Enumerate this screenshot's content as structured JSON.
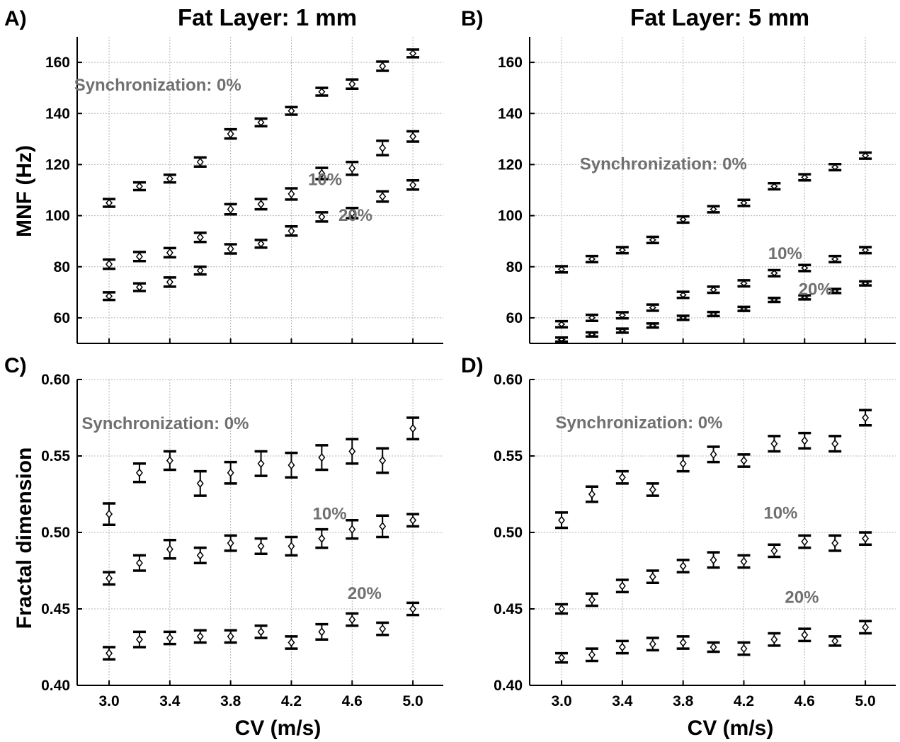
{
  "figure": {
    "x_label": "CV (m/s)",
    "y_label_top": "MNF (Hz)",
    "y_label_bottom": "Fractal dimension"
  },
  "chart_data": [
    {
      "id": "A",
      "type": "scatter",
      "letter": "A)",
      "title": "Fat Layer: 1 mm",
      "xlabel": "",
      "ylabel": "MNF (Hz)",
      "x": [
        3.0,
        3.2,
        3.4,
        3.6,
        3.8,
        4.0,
        4.2,
        4.4,
        4.6,
        4.8,
        5.0
      ],
      "xlim": [
        2.79,
        5.2
      ],
      "ylim": [
        50,
        170
      ],
      "xticks": [
        3.0,
        3.4,
        3.8,
        4.2,
        4.6,
        5.0
      ],
      "xticklabels": [],
      "yticks": [
        60,
        80,
        100,
        120,
        140,
        160
      ],
      "yticklabels": [
        "60",
        "80",
        "100",
        "120",
        "140",
        "160"
      ],
      "grid": true,
      "annotations": [
        {
          "text": "Synchronization:  0%",
          "x": 2.77,
          "y": 149
        },
        {
          "text": "10%",
          "x": 4.31,
          "y": 112
        },
        {
          "text": "20%",
          "x": 4.51,
          "y": 98
        }
      ],
      "series": [
        {
          "values": [
            105,
            111.5,
            114.5,
            121,
            132,
            136.5,
            141,
            148.5,
            151.5,
            158.5,
            163.5
          ],
          "errors": [
            1.5,
            1.5,
            1.5,
            1.8,
            1.8,
            1.5,
            1.5,
            1.5,
            1.8,
            1.8,
            1.5
          ]
        },
        {
          "values": [
            81,
            84,
            85.5,
            91.5,
            102.5,
            104.5,
            108.5,
            116.5,
            118.5,
            126.5,
            131
          ],
          "errors": [
            1.8,
            1.8,
            1.8,
            1.8,
            2.0,
            2.0,
            2.2,
            2.2,
            2.5,
            2.8,
            2.0
          ]
        },
        {
          "values": [
            68.5,
            72,
            74,
            78.5,
            87,
            89,
            94,
            99.5,
            101,
            107.5,
            112
          ],
          "errors": [
            1.5,
            1.5,
            1.8,
            1.5,
            1.8,
            1.5,
            1.8,
            1.8,
            2.0,
            2.0,
            1.8
          ]
        }
      ]
    },
    {
      "id": "B",
      "type": "scatter",
      "letter": "B)",
      "title": "Fat Layer: 5 mm",
      "xlabel": "",
      "ylabel": "",
      "x": [
        3.0,
        3.2,
        3.4,
        3.6,
        3.8,
        4.0,
        4.2,
        4.4,
        4.6,
        4.8,
        5.0
      ],
      "xlim": [
        2.79,
        5.2
      ],
      "ylim": [
        50,
        170
      ],
      "xticks": [
        3.0,
        3.4,
        3.8,
        4.2,
        4.6,
        5.0
      ],
      "xticklabels": [],
      "yticks": [
        60,
        80,
        100,
        120,
        140,
        160
      ],
      "yticklabels": [
        "60",
        "80",
        "100",
        "120",
        "140",
        "160"
      ],
      "grid": true,
      "annotations": [
        {
          "text": "Synchronization:  0%",
          "x": 3.12,
          "y": 118
        },
        {
          "text": "10%",
          "x": 4.36,
          "y": 83
        },
        {
          "text": "20%",
          "x": 4.56,
          "y": 69
        }
      ],
      "series": [
        {
          "values": [
            79,
            83,
            86.5,
            90.5,
            98.5,
            102.5,
            105,
            111.5,
            115,
            119,
            123.5
          ],
          "errors": [
            1.2,
            1.2,
            1.2,
            1.2,
            1.2,
            1.2,
            1.2,
            1.2,
            1.2,
            1.2,
            1.2
          ]
        },
        {
          "values": [
            57.5,
            60,
            61,
            64,
            69,
            71,
            73.5,
            77.5,
            79.5,
            83,
            86.5
          ],
          "errors": [
            1.2,
            1.2,
            1.2,
            1.2,
            1.2,
            1.2,
            1.2,
            1.2,
            1.2,
            1.2,
            1.2
          ]
        },
        {
          "values": [
            51.5,
            53.5,
            55,
            57,
            60,
            61.5,
            63.5,
            67,
            68,
            70.5,
            73.5
          ],
          "errors": [
            0.8,
            0.8,
            0.8,
            0.8,
            0.8,
            0.8,
            0.8,
            0.8,
            0.8,
            0.8,
            0.8
          ]
        }
      ]
    },
    {
      "id": "C",
      "type": "scatter",
      "letter": "C)",
      "title": "",
      "xlabel": "CV (m/s)",
      "ylabel": "Fractal dimension",
      "x": [
        3.0,
        3.2,
        3.4,
        3.6,
        3.8,
        4.0,
        4.2,
        4.4,
        4.6,
        4.8,
        5.0
      ],
      "xlim": [
        2.79,
        5.2
      ],
      "ylim": [
        0.4,
        0.6
      ],
      "xticks": [
        3.0,
        3.4,
        3.8,
        4.2,
        4.6,
        5.0
      ],
      "xticklabels": [
        "3.0",
        "3.4",
        "3.8",
        "4.2",
        "4.6",
        "5.0"
      ],
      "yticks": [
        0.4,
        0.45,
        0.5,
        0.55,
        0.6
      ],
      "yticklabels": [
        "0.40",
        "0.45",
        "0.50",
        "0.55",
        "0.60"
      ],
      "grid": true,
      "annotations": [
        {
          "text": "Synchronization:  0%",
          "x": 2.82,
          "y": 0.5675
        },
        {
          "text": "10%",
          "x": 4.34,
          "y": 0.5085
        },
        {
          "text": "20%",
          "x": 4.57,
          "y": 0.4565
        }
      ],
      "series": [
        {
          "values": [
            0.512,
            0.539,
            0.547,
            0.532,
            0.539,
            0.545,
            0.544,
            0.549,
            0.553,
            0.547,
            0.568
          ],
          "errors": [
            0.007,
            0.006,
            0.006,
            0.008,
            0.007,
            0.008,
            0.008,
            0.008,
            0.008,
            0.008,
            0.007
          ]
        },
        {
          "values": [
            0.47,
            0.48,
            0.489,
            0.485,
            0.493,
            0.491,
            0.491,
            0.496,
            0.502,
            0.504,
            0.508
          ],
          "errors": [
            0.004,
            0.005,
            0.006,
            0.005,
            0.005,
            0.005,
            0.006,
            0.006,
            0.006,
            0.007,
            0.004
          ]
        },
        {
          "values": [
            0.421,
            0.43,
            0.431,
            0.432,
            0.432,
            0.435,
            0.428,
            0.435,
            0.443,
            0.437,
            0.45
          ],
          "errors": [
            0.004,
            0.005,
            0.004,
            0.004,
            0.004,
            0.004,
            0.004,
            0.005,
            0.004,
            0.004,
            0.004
          ]
        }
      ]
    },
    {
      "id": "D",
      "type": "scatter",
      "letter": "D)",
      "title": "",
      "xlabel": "CV (m/s)",
      "ylabel": "",
      "x": [
        3.0,
        3.2,
        3.4,
        3.6,
        3.8,
        4.0,
        4.2,
        4.4,
        4.6,
        4.8,
        5.0
      ],
      "xlim": [
        2.79,
        5.2
      ],
      "ylim": [
        0.4,
        0.6
      ],
      "xticks": [
        3.0,
        3.4,
        3.8,
        4.2,
        4.6,
        5.0
      ],
      "xticklabels": [
        "3.0",
        "3.4",
        "3.8",
        "4.2",
        "4.6",
        "5.0"
      ],
      "yticks": [
        0.4,
        0.45,
        0.5,
        0.55,
        0.6
      ],
      "yticklabels": [
        "0.40",
        "0.45",
        "0.50",
        "0.55",
        "0.60"
      ],
      "grid": true,
      "annotations": [
        {
          "text": "Synchronization:  0%",
          "x": 2.96,
          "y": 0.568
        },
        {
          "text": "10%",
          "x": 4.33,
          "y": 0.509
        },
        {
          "text": "20%",
          "x": 4.47,
          "y": 0.454
        }
      ],
      "series": [
        {
          "values": [
            0.508,
            0.525,
            0.536,
            0.528,
            0.545,
            0.551,
            0.547,
            0.558,
            0.56,
            0.558,
            0.575
          ],
          "errors": [
            0.005,
            0.005,
            0.004,
            0.004,
            0.005,
            0.005,
            0.004,
            0.005,
            0.005,
            0.005,
            0.005
          ]
        },
        {
          "values": [
            0.45,
            0.456,
            0.465,
            0.471,
            0.478,
            0.482,
            0.481,
            0.488,
            0.494,
            0.493,
            0.496
          ],
          "errors": [
            0.003,
            0.004,
            0.004,
            0.004,
            0.004,
            0.005,
            0.004,
            0.004,
            0.004,
            0.005,
            0.004
          ]
        },
        {
          "values": [
            0.418,
            0.42,
            0.425,
            0.427,
            0.428,
            0.425,
            0.424,
            0.43,
            0.433,
            0.429,
            0.438
          ],
          "errors": [
            0.003,
            0.004,
            0.004,
            0.004,
            0.004,
            0.003,
            0.004,
            0.004,
            0.004,
            0.003,
            0.004
          ]
        }
      ]
    }
  ]
}
